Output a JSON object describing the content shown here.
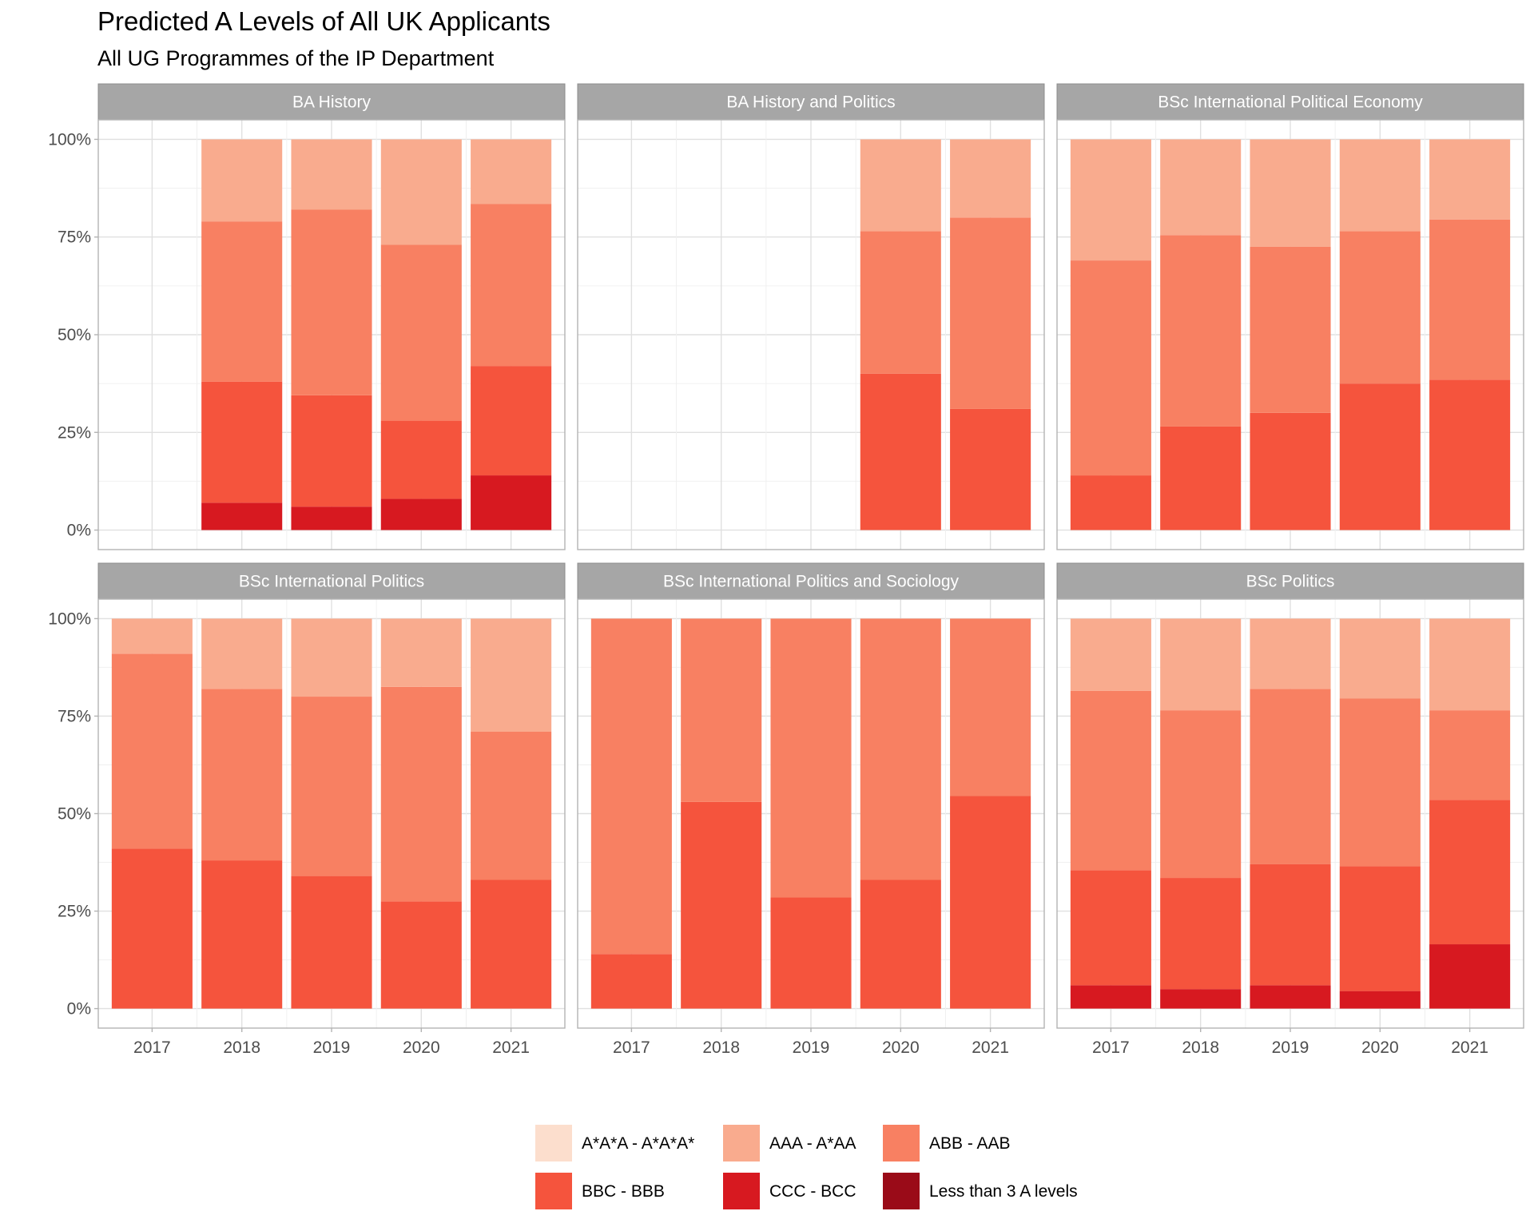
{
  "chart_data": {
    "type": "bar",
    "stacked": true,
    "title": "Predicted A Levels of All UK Applicants",
    "subtitle": "All UG Programmes of the IP Department",
    "categories": [
      "2017",
      "2018",
      "2019",
      "2020",
      "2021"
    ],
    "ylim": [
      0,
      1
    ],
    "y_ticks": [
      "0%",
      "25%",
      "50%",
      "75%",
      "100%"
    ],
    "grid": true,
    "legend_position": "bottom",
    "legend": [
      {
        "label": "A*A*A - A*A*A*",
        "color": "#fcdecd"
      },
      {
        "label": "AAA - A*AA",
        "color": "#f9ab8e"
      },
      {
        "label": "ABB - AAB",
        "color": "#f88062"
      },
      {
        "label": "BBC - BBB",
        "color": "#f5543d"
      },
      {
        "label": "CCC - BCC",
        "color": "#d71920"
      },
      {
        "label": "Less than 3 A levels",
        "color": "#9a0b18"
      }
    ],
    "facets": [
      {
        "name": "BA History",
        "bars": {
          "2017": null,
          "2018": [
            0,
            0.21,
            0.41,
            0.31,
            0.07,
            0
          ],
          "2019": [
            0,
            0.18,
            0.475,
            0.285,
            0.06,
            0
          ],
          "2020": [
            0,
            0.27,
            0.45,
            0.2,
            0.08,
            0
          ],
          "2021": [
            0,
            0.165,
            0.415,
            0.28,
            0.14,
            0
          ]
        }
      },
      {
        "name": "BA History and Politics",
        "bars": {
          "2017": null,
          "2018": null,
          "2019": null,
          "2020": [
            0,
            0.235,
            0.365,
            0.4,
            0,
            0
          ],
          "2021": [
            0,
            0.2,
            0.49,
            0.31,
            0,
            0
          ]
        }
      },
      {
        "name": "BSc International Political Economy",
        "bars": {
          "2017": [
            0,
            0.31,
            0.55,
            0.14,
            0,
            0
          ],
          "2018": [
            0,
            0.245,
            0.49,
            0.265,
            0,
            0
          ],
          "2019": [
            0,
            0.275,
            0.425,
            0.3,
            0,
            0
          ],
          "2020": [
            0,
            0.235,
            0.39,
            0.375,
            0,
            0
          ],
          "2021": [
            0,
            0.205,
            0.41,
            0.385,
            0,
            0
          ]
        }
      },
      {
        "name": "BSc International Politics",
        "bars": {
          "2017": [
            0,
            0.09,
            0.5,
            0.41,
            0,
            0
          ],
          "2018": [
            0,
            0.18,
            0.44,
            0.38,
            0,
            0
          ],
          "2019": [
            0,
            0.2,
            0.46,
            0.34,
            0,
            0
          ],
          "2020": [
            0,
            0.175,
            0.55,
            0.275,
            0,
            0
          ],
          "2021": [
            0,
            0.29,
            0.38,
            0.33,
            0,
            0
          ]
        }
      },
      {
        "name": "BSc International Politics and Sociology",
        "bars": {
          "2017": [
            0,
            0,
            0.86,
            0.14,
            0,
            0
          ],
          "2018": [
            0,
            0,
            0.47,
            0.53,
            0,
            0
          ],
          "2019": [
            0,
            0,
            0.715,
            0.285,
            0,
            0
          ],
          "2020": [
            0,
            0,
            0.67,
            0.33,
            0,
            0
          ],
          "2021": [
            0,
            0,
            0.455,
            0.545,
            0,
            0
          ]
        }
      },
      {
        "name": "BSc Politics",
        "bars": {
          "2017": [
            0,
            0.185,
            0.46,
            0.295,
            0.06,
            0
          ],
          "2018": [
            0,
            0.235,
            0.43,
            0.285,
            0.05,
            0
          ],
          "2019": [
            0,
            0.18,
            0.45,
            0.31,
            0.06,
            0
          ],
          "2020": [
            0,
            0.205,
            0.43,
            0.32,
            0.045,
            0
          ],
          "2021": [
            0,
            0.235,
            0.23,
            0.37,
            0.165,
            0
          ]
        }
      }
    ]
  }
}
